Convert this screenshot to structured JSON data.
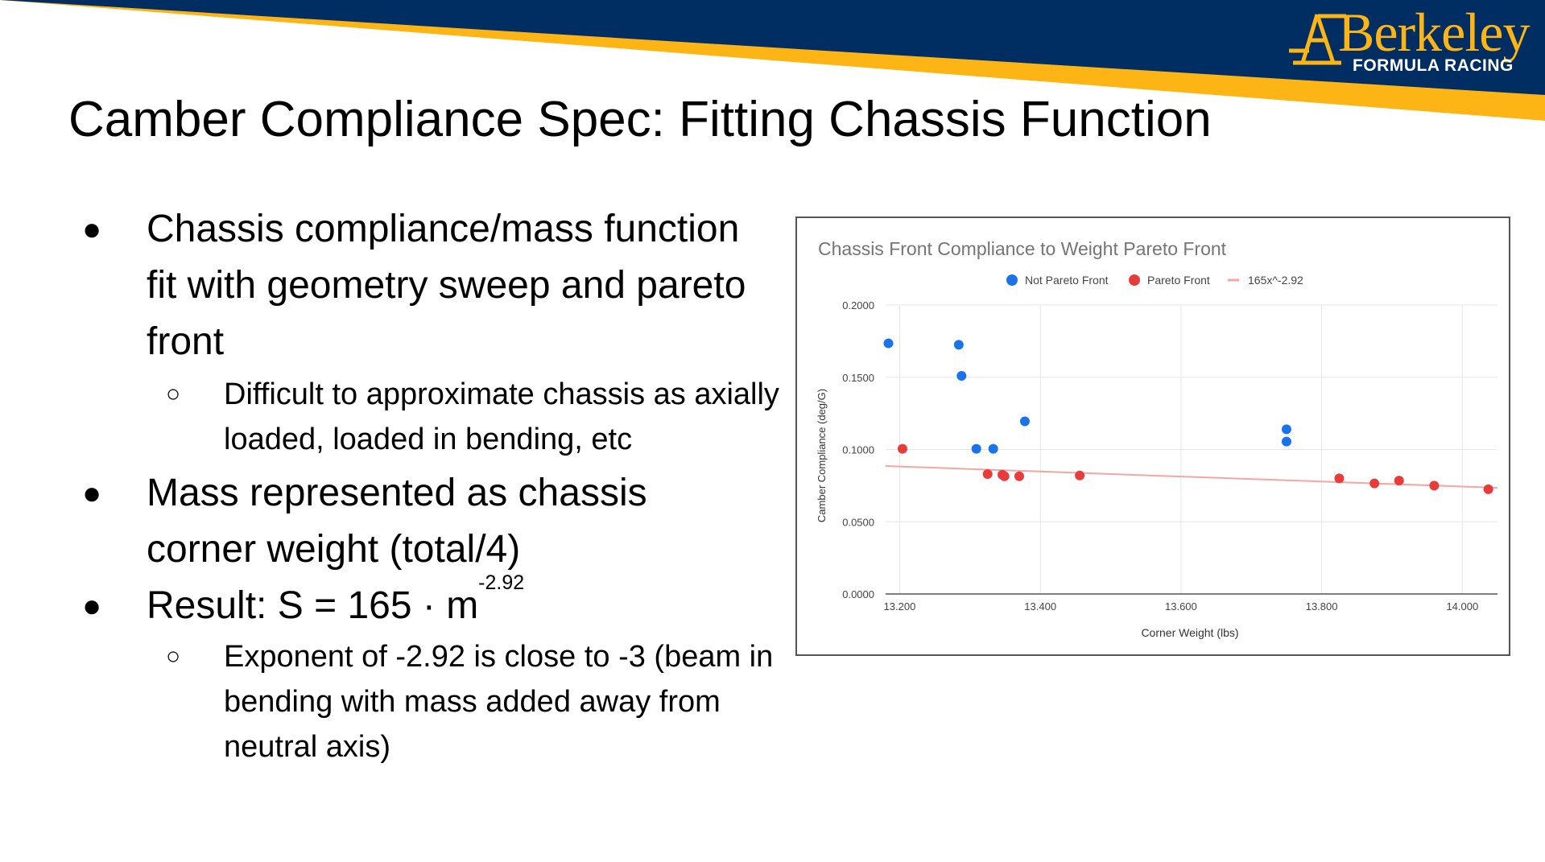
{
  "slide": {
    "title": "Camber Compliance Spec: Fitting Chassis Function",
    "logo": {
      "word": "Berkeley",
      "sub": "FORMULA RACING"
    },
    "bullets": [
      {
        "text": "Chassis compliance/mass function fit with geometry sweep and pareto front"
      },
      {
        "text": "Difficult to approximate chassis as axially loaded, loaded in bending, etc"
      },
      {
        "text": "Mass represented as chassis corner weight (total/4)"
      },
      {
        "text": "Result: S = 165 · m",
        "superscript": "-2.92"
      },
      {
        "text": "Exponent of -2.92 is close to -3 (beam in bending with mass added away from neutral axis)"
      }
    ],
    "bullet_glyphs": {
      "level1": "●",
      "level2": "○"
    },
    "colors": {
      "navy": "#002D62",
      "gold": "#FDB515"
    }
  },
  "chart_data": {
    "type": "scatter",
    "title": "Chassis Front Compliance to Weight Pareto Front",
    "xlabel": "Corner Weight (lbs)",
    "ylabel": "Camber Compliance (deg/G)",
    "xlim": [
      13.18,
      14.05
    ],
    "ylim": [
      0,
      0.2
    ],
    "xticks": [
      "13.200",
      "13.400",
      "13.600",
      "13.800",
      "14.000"
    ],
    "yticks": [
      "0.0000",
      "0.0500",
      "0.1000",
      "0.1500",
      "0.2000"
    ],
    "grid": true,
    "legend_position": "top",
    "series": [
      {
        "name": "Not Pareto Front",
        "color": "#1A73E8",
        "points": [
          [
            13.184,
            0.1735
          ],
          [
            13.284,
            0.1725
          ],
          [
            13.288,
            0.151
          ],
          [
            13.309,
            0.1005
          ],
          [
            13.333,
            0.1005
          ],
          [
            13.378,
            0.1195
          ],
          [
            13.75,
            0.114
          ],
          [
            13.75,
            0.1055
          ]
        ]
      },
      {
        "name": "Pareto Front",
        "color": "#EA3B3B",
        "points": [
          [
            13.204,
            0.1005
          ],
          [
            13.325,
            0.083
          ],
          [
            13.346,
            0.0825
          ],
          [
            13.349,
            0.0815
          ],
          [
            13.37,
            0.0815
          ],
          [
            13.456,
            0.082
          ],
          [
            13.825,
            0.08
          ],
          [
            13.875,
            0.0765
          ],
          [
            13.91,
            0.0785
          ],
          [
            13.96,
            0.075
          ],
          [
            14.037,
            0.0725
          ]
        ]
      },
      {
        "name": "165x^-2.92",
        "color": "#F4A6A6",
        "type": "line",
        "coef": 165,
        "exponent": -2.92,
        "x_range": [
          13.18,
          14.05
        ]
      }
    ]
  }
}
